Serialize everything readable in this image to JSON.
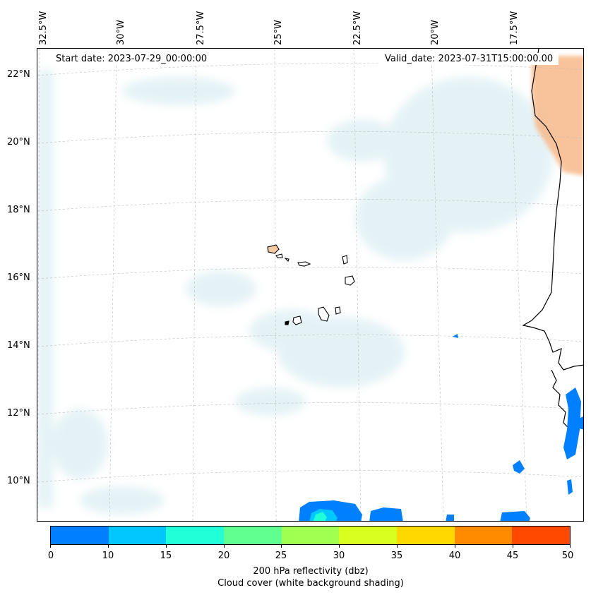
{
  "map": {
    "start_date": "Start date: 2023-07-29_00:00:00",
    "valid_date": "Valid_date: 2023-07-31T15:00:00.00",
    "lon_labels": [
      "32.5°W",
      "30°W",
      "27.5°W",
      "25°W",
      "22.5°W",
      "20°W",
      "17.5°W"
    ],
    "lat_labels": [
      "22°N",
      "20°N",
      "18°N",
      "16°N",
      "14°N",
      "12°N",
      "10°N"
    ]
  },
  "colorbar": {
    "ticks": [
      "0",
      "10",
      "15",
      "20",
      "25",
      "30",
      "35",
      "40",
      "45",
      "50"
    ],
    "colors": [
      "#0080ff",
      "#00c8ff",
      "#20ffd8",
      "#60ff90",
      "#a0ff50",
      "#d8ff20",
      "#ffd800",
      "#ff8c00",
      "#ff4800"
    ],
    "label_line1": "200 hPa reflectivity (dbz)",
    "label_line2": "Cloud cover (white background shading)"
  },
  "colors": {
    "land_warm": "#f7b98a",
    "cloud_shade": "#cfe8f0",
    "reflectivity_low": "#0080ff"
  }
}
